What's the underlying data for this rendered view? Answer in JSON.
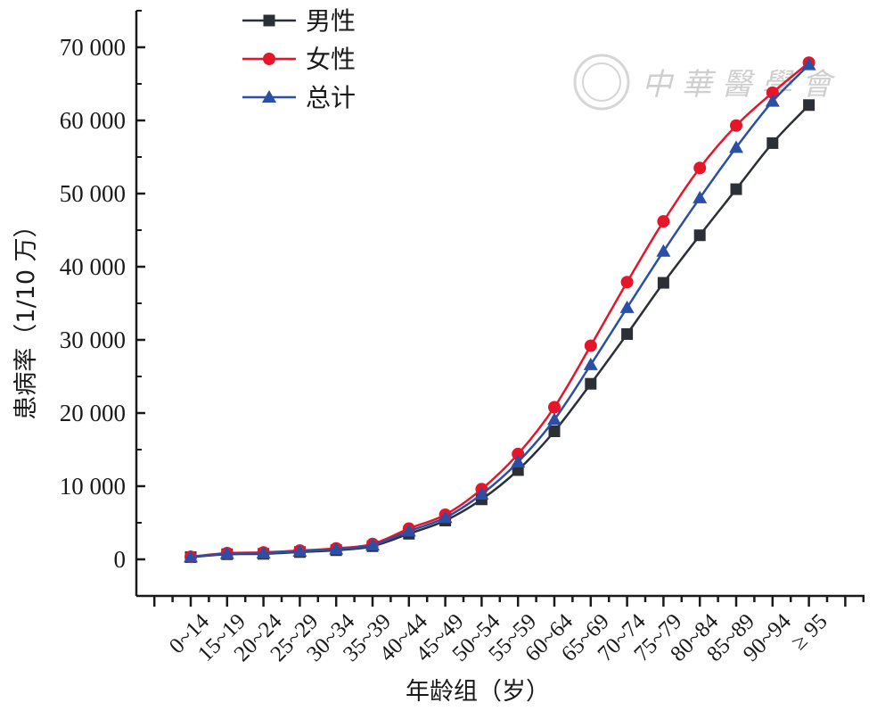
{
  "chart_data": {
    "type": "line",
    "categories": [
      "0~14",
      "15~19",
      "20~24",
      "25~29",
      "30~34",
      "35~39",
      "40~44",
      "45~49",
      "50~54",
      "55~59",
      "60~64",
      "65~69",
      "70~74",
      "75~79",
      "80~84",
      "85~89",
      "90~94",
      "≥ 95"
    ],
    "ylabel": "患病率（1/10 万）",
    "xlabel": "年龄组（岁）",
    "ylim": [
      -5000,
      75000
    ],
    "yticks": [
      0,
      10000,
      20000,
      30000,
      40000,
      50000,
      60000,
      70000
    ],
    "ytick_labels": [
      "0",
      "10 000",
      "20 000",
      "30 000",
      "40 000",
      "50 000",
      "60 000",
      "70 000"
    ],
    "legend_position": "top-left",
    "series": [
      {
        "name": "男性",
        "color": "#2b2f36",
        "marker": "square",
        "values": [
          300,
          700,
          750,
          1000,
          1250,
          1800,
          3500,
          5300,
          8200,
          12200,
          17500,
          24000,
          30800,
          37800,
          44300,
          50600,
          56900,
          62100
        ]
      },
      {
        "name": "女性",
        "color": "#e5162a",
        "marker": "circle",
        "values": [
          350,
          850,
          950,
          1200,
          1500,
          2100,
          4200,
          6100,
          9600,
          14400,
          20800,
          29200,
          37900,
          46200,
          53500,
          59300,
          63800,
          67900
        ]
      },
      {
        "name": "总计",
        "color": "#2b4fa6",
        "marker": "triangle",
        "values": [
          320,
          780,
          850,
          1100,
          1380,
          1950,
          3850,
          5700,
          8900,
          13300,
          19100,
          26600,
          34400,
          42100,
          49400,
          56300,
          62600,
          67600
        ]
      }
    ]
  },
  "watermark": {
    "text": "中 華 醫 學 會"
  }
}
